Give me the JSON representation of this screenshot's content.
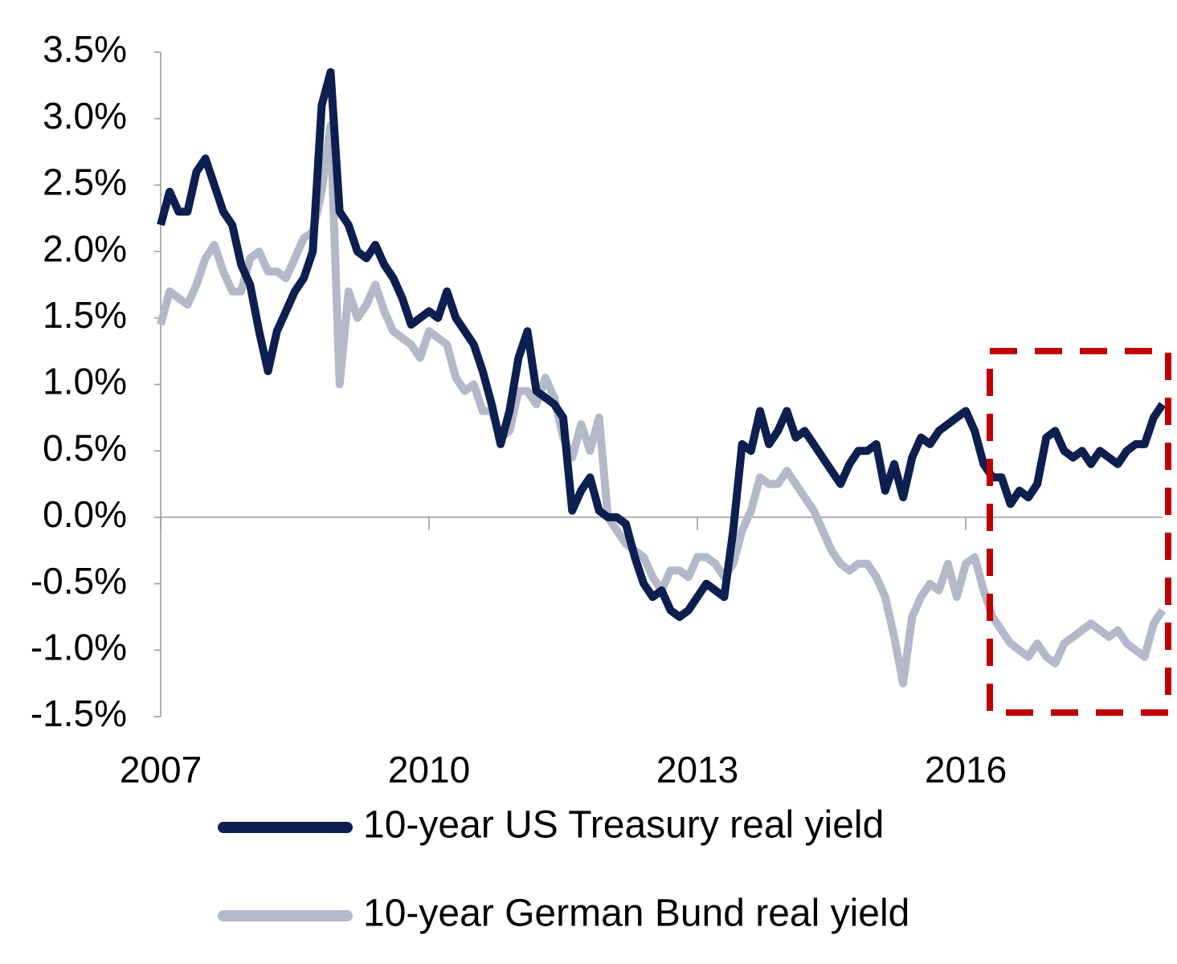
{
  "chart_data": {
    "type": "line",
    "x": [
      2007.0,
      2007.1,
      2007.2,
      2007.3,
      2007.4,
      2007.5,
      2007.6,
      2007.7,
      2007.8,
      2007.9,
      2008.0,
      2008.1,
      2008.2,
      2008.3,
      2008.4,
      2008.5,
      2008.6,
      2008.7,
      2008.8,
      2008.9,
      2009.0,
      2009.1,
      2009.2,
      2009.3,
      2009.4,
      2009.5,
      2009.6,
      2009.7,
      2009.8,
      2009.9,
      2010.0,
      2010.1,
      2010.2,
      2010.3,
      2010.4,
      2010.5,
      2010.6,
      2010.7,
      2010.8,
      2010.9,
      2011.0,
      2011.1,
      2011.2,
      2011.3,
      2011.4,
      2011.5,
      2011.6,
      2011.7,
      2011.8,
      2011.9,
      2012.0,
      2012.1,
      2012.2,
      2012.3,
      2012.4,
      2012.5,
      2012.6,
      2012.7,
      2012.8,
      2012.9,
      2013.0,
      2013.1,
      2013.2,
      2013.3,
      2013.4,
      2013.5,
      2013.6,
      2013.7,
      2013.8,
      2013.9,
      2014.0,
      2014.1,
      2014.2,
      2014.3,
      2014.4,
      2014.5,
      2014.6,
      2014.7,
      2014.8,
      2014.9,
      2015.0,
      2015.1,
      2015.2,
      2015.3,
      2015.4,
      2015.5,
      2015.6,
      2015.7,
      2015.8,
      2015.9,
      2016.0,
      2016.1,
      2016.2,
      2016.3,
      2016.4,
      2016.5,
      2016.6,
      2016.7,
      2016.8,
      2016.9,
      2017.0,
      2017.1,
      2017.2,
      2017.3,
      2017.4,
      2017.5,
      2017.6,
      2017.7,
      2017.8,
      2017.9,
      2018.0,
      2018.1,
      2018.2
    ],
    "series": [
      {
        "name": "10-year US Treasury real yield",
        "color": "#0d1f4f",
        "values": [
          2.2,
          2.45,
          2.3,
          2.3,
          2.6,
          2.7,
          2.5,
          2.3,
          2.2,
          1.9,
          1.75,
          1.4,
          1.1,
          1.4,
          1.55,
          1.7,
          1.8,
          2.0,
          3.1,
          3.35,
          2.3,
          2.2,
          2.0,
          1.95,
          2.05,
          1.9,
          1.8,
          1.65,
          1.45,
          1.5,
          1.55,
          1.5,
          1.7,
          1.5,
          1.4,
          1.3,
          1.1,
          0.85,
          0.55,
          0.8,
          1.2,
          1.4,
          0.95,
          0.9,
          0.85,
          0.75,
          0.05,
          0.2,
          0.3,
          0.05,
          0.0,
          0.0,
          -0.05,
          -0.3,
          -0.5,
          -0.6,
          -0.55,
          -0.7,
          -0.75,
          -0.7,
          -0.6,
          -0.5,
          -0.55,
          -0.6,
          -0.1,
          0.55,
          0.5,
          0.8,
          0.55,
          0.65,
          0.8,
          0.6,
          0.65,
          0.55,
          0.45,
          0.35,
          0.25,
          0.4,
          0.5,
          0.5,
          0.55,
          0.2,
          0.4,
          0.15,
          0.45,
          0.6,
          0.55,
          0.65,
          0.7,
          0.75,
          0.8,
          0.65,
          0.4,
          0.3,
          0.3,
          0.1,
          0.2,
          0.15,
          0.25,
          0.6,
          0.65,
          0.5,
          0.45,
          0.5,
          0.4,
          0.5,
          0.45,
          0.4,
          0.5,
          0.55,
          0.55,
          0.75,
          0.85
        ]
      },
      {
        "name": "10-year German Bund real yield",
        "color": "#b3b9c8",
        "values": [
          1.45,
          1.7,
          1.65,
          1.6,
          1.75,
          1.95,
          2.05,
          1.85,
          1.7,
          1.7,
          1.95,
          2.0,
          1.85,
          1.85,
          1.8,
          1.95,
          2.1,
          2.15,
          2.45,
          2.95,
          1.0,
          1.7,
          1.5,
          1.6,
          1.75,
          1.55,
          1.4,
          1.35,
          1.3,
          1.2,
          1.4,
          1.35,
          1.3,
          1.05,
          0.95,
          1.0,
          0.8,
          0.8,
          0.6,
          0.65,
          0.95,
          0.95,
          0.85,
          1.05,
          0.9,
          0.6,
          0.45,
          0.7,
          0.5,
          0.75,
          0.0,
          -0.1,
          -0.2,
          -0.25,
          -0.3,
          -0.45,
          -0.55,
          -0.4,
          -0.4,
          -0.45,
          -0.3,
          -0.3,
          -0.35,
          -0.45,
          -0.35,
          -0.1,
          0.05,
          0.3,
          0.25,
          0.25,
          0.35,
          0.25,
          0.15,
          0.05,
          -0.1,
          -0.25,
          -0.35,
          -0.4,
          -0.35,
          -0.35,
          -0.45,
          -0.6,
          -0.9,
          -1.25,
          -0.75,
          -0.6,
          -0.5,
          -0.55,
          -0.35,
          -0.6,
          -0.35,
          -0.3,
          -0.55,
          -0.75,
          -0.85,
          -0.95,
          -1.0,
          -1.05,
          -0.95,
          -1.05,
          -1.1,
          -0.95,
          -0.9,
          -0.85,
          -0.8,
          -0.85,
          -0.9,
          -0.85,
          -0.95,
          -1.0,
          -1.05,
          -0.8,
          -0.7
        ]
      }
    ],
    "xlim": [
      2007,
      2018.2
    ],
    "xticks": [
      2007,
      2010,
      2013,
      2016
    ],
    "ylim": [
      -1.5,
      3.5
    ],
    "yticks": [
      {
        "value": -1.5,
        "label": "-1.5%"
      },
      {
        "value": -1.0,
        "label": "-1.0%"
      },
      {
        "value": -0.5,
        "label": "-0.5%"
      },
      {
        "value": 0,
        "label": "0.0%"
      },
      {
        "value": 0.5,
        "label": "0.5%"
      },
      {
        "value": 1.0,
        "label": "1.0%"
      },
      {
        "value": 1.5,
        "label": "1.5%"
      },
      {
        "value": 2.0,
        "label": "2.0%"
      },
      {
        "value": 2.5,
        "label": "2.5%"
      },
      {
        "value": 3.0,
        "label": "3.0%"
      },
      {
        "value": 3.5,
        "label": "3.5%"
      }
    ],
    "grid": false
  }
}
